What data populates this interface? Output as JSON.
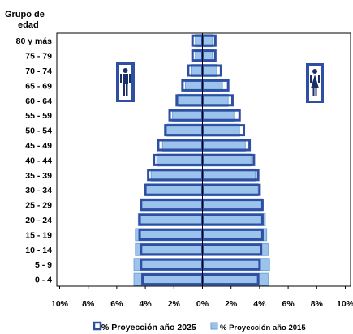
{
  "chart_data": {
    "type": "bar",
    "subtype": "population-pyramid",
    "title": "Grupo de edad",
    "categories": [
      "0 - 4",
      "5 - 9",
      "10 - 14",
      "15 - 19",
      "20 - 24",
      "25 - 29",
      "30 - 34",
      "35 - 39",
      "40 - 44",
      "45 - 49",
      "50 - 54",
      "55 - 59",
      "60 - 64",
      "65 - 69",
      "70 - 74",
      "75 - 79",
      "80 y más"
    ],
    "series": [
      {
        "name": "% Proyección año 2025",
        "style": "outline",
        "color": "#2e4fa3",
        "values_male": [
          4.2,
          4.3,
          4.3,
          4.4,
          4.4,
          4.3,
          4.0,
          3.8,
          3.4,
          3.1,
          2.6,
          2.3,
          1.8,
          1.4,
          1.0,
          0.7,
          0.7
        ],
        "values_female": [
          3.9,
          4.0,
          4.1,
          4.2,
          4.2,
          4.2,
          4.0,
          3.9,
          3.6,
          3.3,
          2.9,
          2.6,
          2.1,
          1.8,
          1.3,
          0.9,
          0.9
        ]
      },
      {
        "name": "% Proyección año 2015",
        "style": "fill",
        "color": "#9cc3eb",
        "values_male": [
          4.8,
          4.8,
          4.7,
          4.7,
          4.5,
          4.3,
          4.0,
          3.6,
          3.2,
          2.8,
          2.5,
          2.1,
          1.7,
          1.2,
          0.8,
          0.5,
          0.5
        ],
        "values_female": [
          4.6,
          4.7,
          4.6,
          4.5,
          4.4,
          4.2,
          3.9,
          3.7,
          3.4,
          3.0,
          2.6,
          2.2,
          1.8,
          1.4,
          1.0,
          0.7,
          0.7
        ]
      }
    ],
    "x_ticks": [
      "10%",
      "8%",
      "6%",
      "4%",
      "2%",
      "0%",
      "2%",
      "4%",
      "6%",
      "8%",
      "10%"
    ],
    "xlim": [
      -10,
      10
    ],
    "grid": false,
    "legend_position": "bottom"
  },
  "icons": {
    "left": "male-figure-icon",
    "right": "female-figure-icon"
  },
  "colors": {
    "outline": "#2e4fa3",
    "fill": "#9cc3eb",
    "icon_bg": "#2e4fa3",
    "axis": "#000000"
  }
}
